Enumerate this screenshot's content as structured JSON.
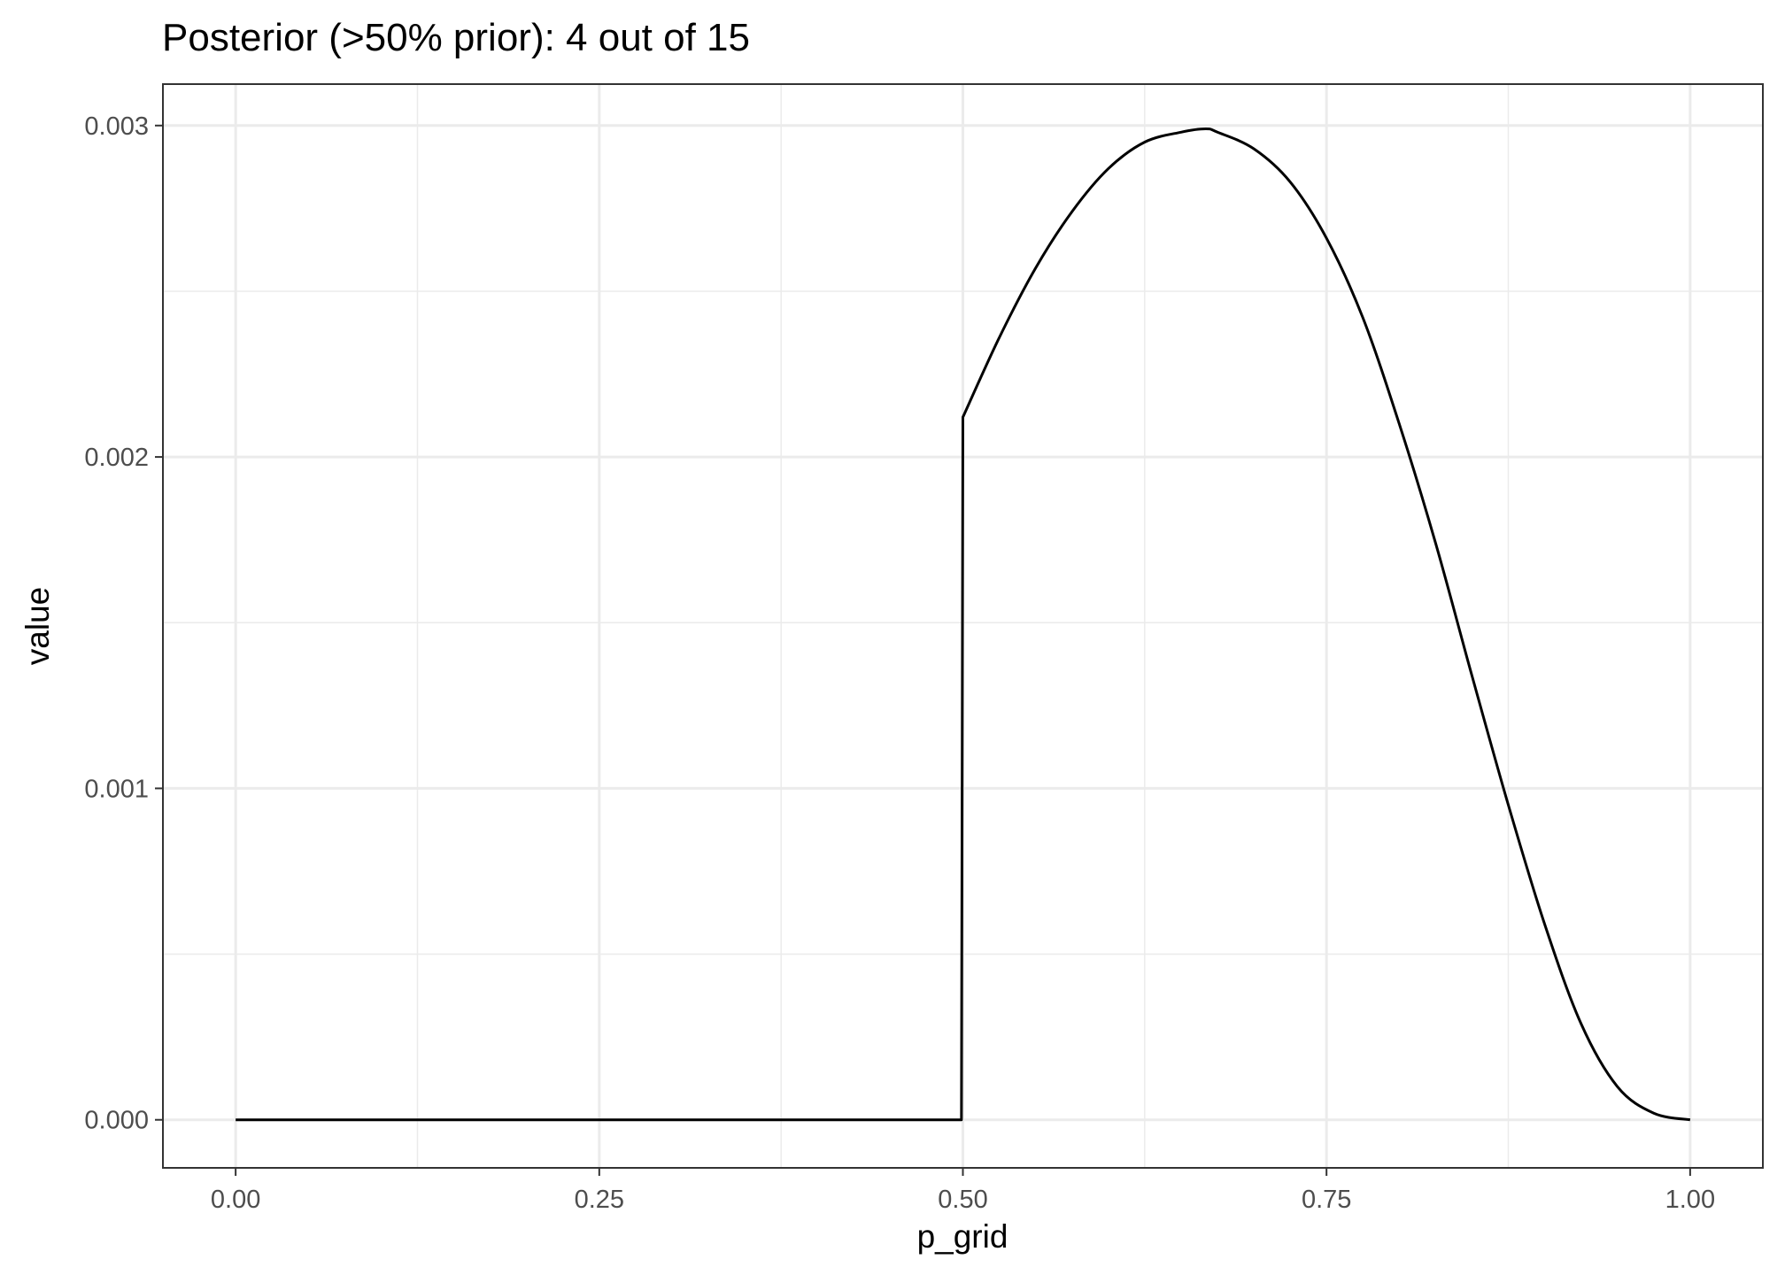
{
  "chart_data": {
    "type": "line",
    "title": "Posterior (>50% prior): 4 out of 15",
    "xlabel": "p_grid",
    "ylabel": "value",
    "xlim": [
      -0.05,
      1.05
    ],
    "ylim": [
      -0.000145,
      0.003125
    ],
    "x_ticks": [
      0,
      0.25,
      0.5,
      0.75,
      1
    ],
    "x_tick_labels": [
      "0.00",
      "0.25",
      "0.50",
      "0.75",
      "1.00"
    ],
    "x_minor_ticks": [
      0.125,
      0.375,
      0.625,
      0.875
    ],
    "y_ticks": [
      0,
      0.001,
      0.002,
      0.003
    ],
    "y_tick_labels": [
      "0.000",
      "0.001",
      "0.002",
      "0.003"
    ],
    "y_minor_ticks": [
      0.0005,
      0.0015,
      0.0025
    ],
    "grid": true,
    "legend": "none",
    "line_color": "#000000",
    "series": [
      {
        "x": [
          0,
          0.1,
          0.2,
          0.3,
          0.4,
          0.499,
          0.5,
          0.525,
          0.55,
          0.575,
          0.6,
          0.625,
          0.65,
          0.667,
          0.675,
          0.7,
          0.725,
          0.75,
          0.775,
          0.8,
          0.825,
          0.85,
          0.875,
          0.9,
          0.925,
          0.95,
          0.975,
          1.0
        ],
        "values": [
          0,
          0,
          0,
          0,
          0,
          0,
          0.00212,
          0.00236,
          0.00257,
          0.00274,
          0.00287,
          0.00295,
          0.00298,
          0.00299,
          0.00298,
          0.00293,
          0.00283,
          0.00266,
          0.00242,
          0.0021,
          0.00174,
          0.00134,
          0.00095,
          0.00059,
          0.00029,
          0.0001,
          2e-05,
          0
        ]
      }
    ]
  }
}
